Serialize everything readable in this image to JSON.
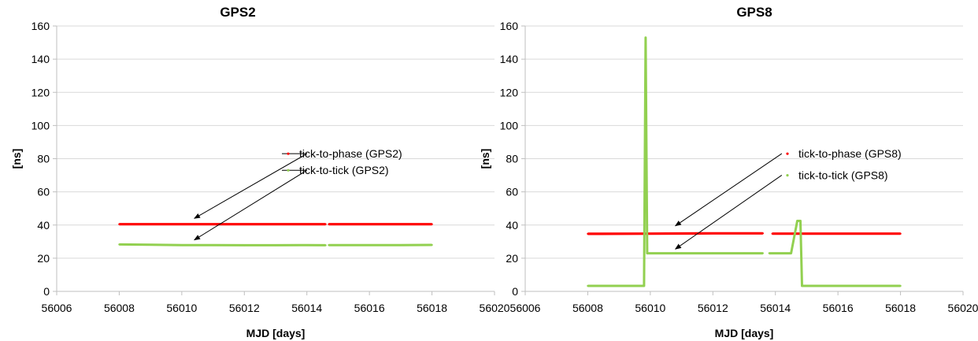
{
  "chart_data": [
    {
      "type": "scatter",
      "title": "GPS2",
      "xlabel": "MJD [days]",
      "ylabel": "[ns]",
      "xlim": [
        56006,
        56020
      ],
      "ylim": [
        0,
        160
      ],
      "xticks": [
        56006,
        56008,
        56010,
        56012,
        56014,
        56016,
        56018,
        56020
      ],
      "yticks": [
        0,
        20,
        40,
        60,
        80,
        100,
        120,
        140,
        160
      ],
      "grid": "horizontal",
      "series": [
        {
          "name": "tick-to-phase (GPS2)",
          "color": "#ff0000",
          "segments": [
            [
              [
                56008.0,
                40.5
              ],
              [
                56014.6,
                40.5
              ]
            ],
            [
              [
                56014.7,
                40.5
              ],
              [
                56018.0,
                40.5
              ]
            ]
          ]
        },
        {
          "name": "tick-to-tick (GPS2)",
          "color": "#92d050",
          "segments": [
            [
              [
                56008.0,
                28.3
              ],
              [
                56009.0,
                28.1
              ],
              [
                56010.0,
                27.9
              ],
              [
                56011.0,
                27.9
              ],
              [
                56012.0,
                27.8
              ],
              [
                56013.0,
                27.8
              ],
              [
                56014.0,
                27.9
              ],
              [
                56014.6,
                27.8
              ]
            ],
            [
              [
                56014.7,
                27.9
              ],
              [
                56016.0,
                27.9
              ],
              [
                56017.0,
                27.9
              ],
              [
                56018.0,
                28.0
              ]
            ]
          ]
        }
      ],
      "annotations": [
        {
          "label_index": 0,
          "from": [
            56014.0,
            83.0
          ],
          "to": [
            56010.4,
            44.0
          ]
        },
        {
          "label_index": 1,
          "from": [
            56014.0,
            73.0
          ],
          "to": [
            56010.4,
            31.0
          ]
        }
      ]
    },
    {
      "type": "scatter",
      "title": "GPS8",
      "xlabel": "MJD [days]",
      "ylabel": "[ns]",
      "xlim": [
        56006,
        56020
      ],
      "ylim": [
        0,
        160
      ],
      "xticks": [
        56006,
        56008,
        56010,
        56012,
        56014,
        56016,
        56018,
        56020
      ],
      "yticks": [
        0,
        20,
        40,
        60,
        80,
        100,
        120,
        140,
        160
      ],
      "grid": "horizontal",
      "series": [
        {
          "name": "tick-to-phase (GPS8)",
          "color": "#ff0000",
          "segments": [
            [
              [
                56008.0,
                34.7
              ],
              [
                56010.0,
                34.8
              ],
              [
                56012.0,
                35.0
              ],
              [
                56013.6,
                35.0
              ]
            ],
            [
              [
                56013.9,
                34.8
              ],
              [
                56016.0,
                34.8
              ],
              [
                56018.0,
                34.8
              ]
            ]
          ]
        },
        {
          "name": "tick-to-tick (GPS8)",
          "color": "#92d050",
          "segments": [
            [
              [
                56008.0,
                3.3
              ],
              [
                56009.8,
                3.3
              ],
              [
                56009.85,
                153.0
              ],
              [
                56009.9,
                23.0
              ],
              [
                56011.0,
                23.0
              ],
              [
                56012.0,
                23.0
              ],
              [
                56013.0,
                23.0
              ],
              [
                56013.6,
                23.0
              ]
            ],
            [
              [
                56013.8,
                23.0
              ],
              [
                56014.5,
                23.0
              ],
              [
                56014.7,
                42.5
              ],
              [
                56014.8,
                42.5
              ],
              [
                56014.85,
                3.3
              ],
              [
                56016.0,
                3.3
              ],
              [
                56018.0,
                3.3
              ]
            ]
          ]
        }
      ],
      "annotations": [
        {
          "label_index": 0,
          "from": [
            56014.2,
            83.0
          ],
          "to": [
            56010.8,
            39.5
          ]
        },
        {
          "label_index": 1,
          "from": [
            56014.2,
            70.0
          ],
          "to": [
            56010.8,
            25.5
          ]
        }
      ]
    }
  ]
}
